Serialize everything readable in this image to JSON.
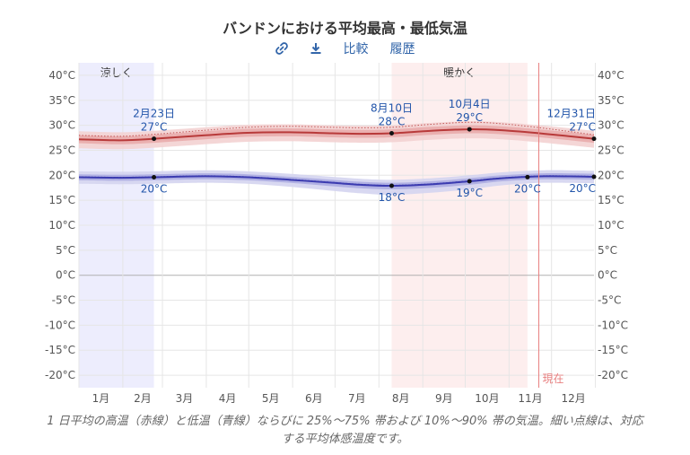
{
  "title": "バンドンにおける平均最高・最低気温",
  "toolbar": {
    "link_icon": "link-icon",
    "download_icon": "download-icon",
    "compare_label": "比較",
    "history_label": "履歴"
  },
  "caption": "1 日平均の高温（赤線）と低温（青線）ならびに 25%～75% 帯および 10%～90% 帯の気温。細い点線は、対応する平均体感温度です。",
  "colors": {
    "high_line": "#b83a3a",
    "high_band_inner": "#e8a9a9",
    "high_band_outer": "#f3d2d2",
    "low_line": "#3b3bb0",
    "low_band_inner": "#a9a9e0",
    "low_band_outer": "#d4d4f0",
    "cool_region": "#ededfd",
    "warm_region": "#fdeeee",
    "now_line": "#e88080",
    "label_blue": "#2255aa"
  },
  "chart_data": {
    "type": "line",
    "title": "バンドンにおける平均最高・最低気温",
    "x_unit": "day_of_year",
    "ylim": [
      -22.5,
      42.5
    ],
    "y_ticks": [
      "40°C",
      "35°C",
      "30°C",
      "25°C",
      "20°C",
      "15°C",
      "10°C",
      "5°C",
      "0°C",
      "-5°C",
      "-10°C",
      "-15°C",
      "-20°C"
    ],
    "y_tick_values": [
      40,
      35,
      30,
      25,
      20,
      15,
      10,
      5,
      0,
      -5,
      -10,
      -15,
      -20
    ],
    "months": [
      "1月",
      "2月",
      "3月",
      "4月",
      "5月",
      "6月",
      "7月",
      "8月",
      "9月",
      "10月",
      "11月",
      "12月"
    ],
    "grid": true,
    "regions": [
      {
        "label": "涼しく",
        "start": "1月1日",
        "end": "2月23日",
        "start_day": 1,
        "end_day": 54
      },
      {
        "label": "暖かく",
        "start": "8月10日",
        "end": "11月14日",
        "start_day": 222,
        "end_day": 318
      }
    ],
    "now_label": "現在",
    "now_day": 326,
    "series": [
      {
        "kind": "high",
        "x": [
          1,
          30,
          54,
          90,
          120,
          150,
          180,
          200,
          222,
          250,
          277,
          300,
          330,
          365
        ],
        "values": [
          27.2,
          27.0,
          27.3,
          28.0,
          28.5,
          28.6,
          28.4,
          28.3,
          28.4,
          28.9,
          29.2,
          29.0,
          28.3,
          27.3
        ],
        "p25": [
          26.4,
          26.2,
          26.5,
          27.2,
          27.7,
          27.8,
          27.6,
          27.5,
          27.6,
          28.1,
          28.4,
          28.2,
          27.5,
          26.5
        ],
        "p75": [
          28.0,
          27.8,
          28.1,
          28.8,
          29.3,
          29.4,
          29.2,
          29.1,
          29.2,
          29.7,
          30.0,
          29.8,
          29.1,
          28.1
        ],
        "p10": [
          25.4,
          25.2,
          25.5,
          26.2,
          26.7,
          26.8,
          26.6,
          26.5,
          26.6,
          27.1,
          27.4,
          27.2,
          26.5,
          25.5
        ],
        "p90": [
          28.8,
          28.6,
          28.9,
          29.6,
          30.1,
          30.2,
          30.0,
          29.9,
          30.0,
          30.5,
          30.8,
          30.6,
          29.9,
          28.9
        ],
        "feels_like": [
          28.0,
          27.8,
          28.2,
          29.0,
          29.6,
          29.8,
          29.6,
          29.5,
          29.6,
          30.2,
          30.6,
          30.3,
          29.4,
          28.1
        ]
      },
      {
        "kind": "low",
        "x": [
          1,
          30,
          54,
          90,
          120,
          150,
          180,
          200,
          222,
          250,
          277,
          300,
          330,
          365
        ],
        "values": [
          19.6,
          19.5,
          19.6,
          19.8,
          19.6,
          19.1,
          18.5,
          18.1,
          17.9,
          18.2,
          18.8,
          19.4,
          19.8,
          19.7
        ],
        "p25": [
          19.0,
          18.9,
          19.0,
          19.2,
          19.0,
          18.5,
          17.8,
          17.4,
          17.2,
          17.5,
          18.1,
          18.8,
          19.2,
          19.1
        ],
        "p75": [
          20.2,
          20.1,
          20.2,
          20.4,
          20.2,
          19.7,
          19.1,
          18.7,
          18.5,
          18.8,
          19.4,
          20.0,
          20.4,
          20.3
        ],
        "p10": [
          18.3,
          18.2,
          18.3,
          18.5,
          18.3,
          17.7,
          16.9,
          16.4,
          16.1,
          16.5,
          17.2,
          18.0,
          18.5,
          18.4
        ],
        "p90": [
          20.8,
          20.7,
          20.8,
          21.0,
          20.8,
          20.3,
          19.7,
          19.3,
          19.1,
          19.4,
          20.0,
          20.6,
          21.0,
          20.9
        ],
        "feels_like": [
          19.7,
          19.6,
          19.7,
          19.9,
          19.7,
          19.2,
          18.6,
          18.2,
          18.0,
          18.3,
          18.9,
          19.5,
          19.9,
          19.8
        ]
      }
    ],
    "annotations": [
      {
        "series": "high",
        "day": 54,
        "date": "2月23日",
        "value": "27°C",
        "pos": "above"
      },
      {
        "series": "high",
        "day": 222,
        "date": "8月10日",
        "value": "28°C",
        "pos": "above"
      },
      {
        "series": "high",
        "day": 277,
        "date": "10月4日",
        "value": "29°C",
        "pos": "above"
      },
      {
        "series": "high",
        "day": 365,
        "date": "12月31日",
        "value": "27°C",
        "pos": "above-left"
      },
      {
        "series": "low",
        "day": 54,
        "date": "",
        "value": "20°C",
        "pos": "below"
      },
      {
        "series": "low",
        "day": 222,
        "date": "",
        "value": "18°C",
        "pos": "below"
      },
      {
        "series": "low",
        "day": 277,
        "date": "",
        "value": "19°C",
        "pos": "below"
      },
      {
        "series": "low",
        "day": 318,
        "date": "",
        "value": "20°C",
        "pos": "below"
      },
      {
        "series": "low",
        "day": 365,
        "date": "",
        "value": "20°C",
        "pos": "below-left"
      }
    ]
  }
}
